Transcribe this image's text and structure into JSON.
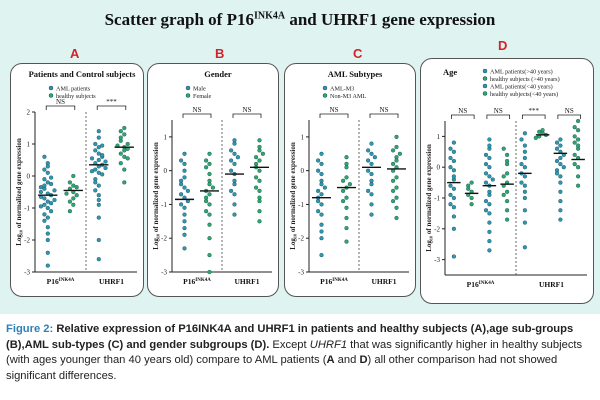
{
  "figure": {
    "title_prefix": "Scatter graph of P16",
    "title_sup": "INK4A",
    "title_suffix": " and UHRF1 gene expression",
    "colors": {
      "blue": "#2e97b0",
      "green": "#2ea86a",
      "bg": "#dff3f1",
      "letter": "#d2232a",
      "caption_label": "#2f7fb8"
    }
  },
  "caption": {
    "label": "Figure 2:",
    "bold_text": " Relative expression of P16INK4A and UHRF1 in patients and healthy subjects (A),age sub-groups (B),AML sub-types (C) and gender subgroups (D).",
    "rest_1": " Except ",
    "rest_italic": "UHRF1",
    "rest_2": " that was significantly higher in healthy subjects (with ages younger than 40 years old) compare to AML patients (",
    "bold_a": "A",
    "rest_3": " and ",
    "bold_d": "D",
    "rest_4": ") all other comparison had not showed significant differences."
  },
  "chart_data": [
    {
      "letter": "A",
      "type": "scatter",
      "title": "Patients and Control subjects",
      "ylabel": "Log₁₀ of normalized gene expression",
      "categories": [
        "P16INK4A",
        "UHRF1"
      ],
      "category_labels": [
        {
          "main": "P16",
          "sup": "INK4A"
        },
        {
          "main": "UHRF1",
          "sup": ""
        }
      ],
      "legend": [
        "AML patients",
        "healthy subjects"
      ],
      "legend_position": "top-left",
      "significance": [
        "NS",
        "***"
      ],
      "ylim": [
        -3,
        2
      ],
      "series": [
        {
          "name": "AML patients",
          "color": "blue",
          "groups": [
            [
              -0.55,
              -0.4,
              -0.8,
              -1.0,
              -1.3,
              -0.2,
              0.1,
              -0.6,
              -0.9,
              -1.6,
              -2.0,
              -0.3,
              0.4,
              -0.5,
              -0.7,
              -1.1,
              -0.1,
              0.3,
              -0.45,
              -0.85,
              -1.4,
              -2.4,
              -2.8,
              -0.25,
              0.6,
              -0.65,
              -1.2,
              -0.35,
              -0.75,
              -1.8,
              0.2,
              -0.05,
              -0.95
            ],
            [
              0.3,
              0.5,
              0.1,
              0.7,
              0.9,
              0.2,
              -0.1,
              0.4,
              0.6,
              1.0,
              -0.3,
              -0.6,
              -0.9,
              1.2,
              0.8,
              0.35,
              0.05,
              -0.2,
              -1.3,
              -2.0,
              -2.6,
              0.55,
              0.15,
              0.45,
              1.4,
              -0.45,
              0.25,
              0.65,
              -0.75,
              0.95
            ]
          ],
          "medians": [
            -0.6,
            0.35
          ]
        },
        {
          "name": "healthy subjects",
          "color": "green",
          "groups": [
            [
              -0.5,
              -0.3,
              -0.7,
              -0.2,
              -0.9,
              -0.4,
              -0.6,
              0.0,
              -0.8,
              -1.1,
              -0.35,
              -0.55
            ],
            [
              0.9,
              1.1,
              0.6,
              1.3,
              0.8,
              0.4,
              1.5,
              1.0,
              0.7,
              0.2,
              0.95,
              1.2,
              0.55,
              1.4,
              -0.2,
              0.85
            ]
          ],
          "medians": [
            -0.45,
            0.9
          ]
        }
      ]
    },
    {
      "letter": "B",
      "type": "scatter",
      "title": "Gender",
      "ylabel": "Log₁₀ of normalized gene expression",
      "categories": [
        "P16INK4A",
        "UHRF1"
      ],
      "category_labels": [
        {
          "main": "P16",
          "sup": "INK4A"
        },
        {
          "main": "UHRF1",
          "sup": ""
        }
      ],
      "legend": [
        "Male",
        "Female"
      ],
      "legend_position": "top-left",
      "significance": [
        "NS",
        "NS"
      ],
      "ylim": [
        -3,
        1.5
      ],
      "y_ticks": [
        -3,
        -2,
        -1,
        0,
        1
      ],
      "series": [
        {
          "name": "Male",
          "color": "blue",
          "groups": [
            [
              0.5,
              0.2,
              -0.2,
              -0.5,
              -0.8,
              -1.1,
              -1.5,
              -1.9,
              -2.3,
              0.0,
              -0.4,
              -0.7,
              -1.0,
              -0.9,
              -0.6,
              -1.3,
              -0.3,
              0.3,
              -1.7
            ],
            [
              0.8,
              0.5,
              0.2,
              -0.1,
              -0.4,
              -0.7,
              -1.0,
              0.6,
              0.3,
              0.0,
              -0.3,
              -0.6,
              -1.3,
              0.9,
              0.4
            ]
          ],
          "medians": [
            -0.85,
            -0.1
          ]
        },
        {
          "name": "Female",
          "color": "green",
          "groups": [
            [
              0.5,
              0.2,
              -0.1,
              -0.4,
              -0.7,
              -1.0,
              -1.3,
              -1.6,
              -2.0,
              -2.5,
              -3.0,
              0.1,
              -0.3,
              -0.6,
              -0.9,
              -1.2,
              -0.5,
              -0.8,
              0.3
            ],
            [
              0.9,
              0.6,
              0.3,
              0.0,
              -0.3,
              -0.6,
              -0.9,
              -1.2,
              -1.5,
              0.7,
              0.4,
              0.1,
              -0.2,
              -0.5,
              -0.8,
              0.5,
              0.2
            ]
          ],
          "medians": [
            -0.6,
            0.1
          ]
        }
      ]
    },
    {
      "letter": "C",
      "type": "scatter",
      "title": "AML Subtypes",
      "ylabel": "Log₁₀ of normalized gene expression",
      "categories": [
        "P16INK4A",
        "UHRF1"
      ],
      "category_labels": [
        {
          "main": "P16",
          "sup": "INK4A"
        },
        {
          "main": "UHRF1",
          "sup": ""
        }
      ],
      "legend": [
        "AML-M3",
        "Non-M3 AML"
      ],
      "legend_position": "top-left",
      "significance": [
        "NS",
        "NS"
      ],
      "ylim": [
        -3,
        1.5
      ],
      "y_ticks": [
        -3,
        -2,
        -1,
        0,
        1
      ],
      "series": [
        {
          "name": "AML-M3",
          "color": "blue",
          "groups": [
            [
              0.5,
              0.2,
              -0.1,
              -0.4,
              -0.7,
              -1.0,
              -1.3,
              -1.6,
              -2.0,
              -2.5,
              0.0,
              -0.3,
              -0.6,
              -0.9,
              -1.2,
              -0.5,
              -0.8,
              0.3,
              -1.8
            ],
            [
              0.8,
              0.5,
              0.2,
              -0.1,
              -0.4,
              -0.7,
              -1.0,
              0.6,
              0.3,
              0.0,
              -0.3,
              -0.6,
              -1.3,
              0.4
            ]
          ],
          "medians": [
            -0.8,
            0.1
          ]
        },
        {
          "name": "Non-M3 AML",
          "color": "green",
          "groups": [
            [
              0.4,
              0.1,
              -0.2,
              -0.5,
              -0.8,
              -1.1,
              -1.4,
              -1.7,
              -2.1,
              -0.3,
              -0.6,
              -0.9,
              0.2,
              -0.4
            ],
            [
              1.0,
              0.7,
              0.4,
              0.1,
              -0.2,
              -0.5,
              -0.8,
              -1.1,
              -1.4,
              0.6,
              0.3,
              0.0,
              -0.3,
              -0.6,
              0.5,
              0.2,
              -0.9
            ]
          ],
          "medians": [
            -0.5,
            0.05
          ]
        }
      ]
    },
    {
      "letter": "D",
      "type": "scatter",
      "title": "Age",
      "ylabel": "Log₁₀ of normalized gene expression",
      "categories": [
        "P16INK4A",
        "UHRF1"
      ],
      "category_labels": [
        {
          "main": "P16",
          "sup": "INK4A"
        },
        {
          "main": "UHRF1",
          "sup": ""
        }
      ],
      "legend": [
        "AML patients(>40 years)",
        "healthy subjects (>40 years)",
        "AML patients(<40 years)",
        "healthy subjects(<40 years)"
      ],
      "legend_position": "top-right",
      "significance": [
        "NS",
        "NS",
        "***",
        "NS"
      ],
      "ylim": [
        -3.5,
        1.5
      ],
      "series": [
        {
          "name": "AML patients(>40 years)",
          "color": "blue",
          "groups": [
            [
              0.8,
              0.5,
              0.2,
              -0.1,
              -0.4,
              -0.7,
              -1.0,
              -1.3,
              -1.6,
              -2.0,
              0.3,
              0.0,
              -0.3,
              -0.6,
              -0.9,
              -1.2,
              -2.9,
              0.6
            ],
            [
              1.1,
              0.7,
              0.3,
              0.0,
              -0.3,
              -0.6,
              -1.0,
              -1.4,
              -1.8,
              0.5,
              0.1,
              -0.2,
              -0.5,
              -0.8,
              0.9,
              -2.6
            ]
          ],
          "medians": [
            -0.5,
            -0.2
          ]
        },
        {
          "name": "healthy subjects (>40 years)",
          "color": "green",
          "groups": [
            [
              -0.5,
              -0.8,
              -1.0,
              -0.6,
              -0.9,
              -1.2,
              -0.7
            ],
            [
              1.1,
              1.0,
              1.2,
              1.05,
              1.15,
              0.95
            ]
          ],
          "medians": [
            -0.85,
            1.05
          ]
        },
        {
          "name": "AML patients(<40 years)",
          "color": "blue",
          "groups": [
            [
              0.9,
              0.6,
              0.3,
              0.0,
              -0.3,
              -0.6,
              -0.9,
              -1.2,
              -1.5,
              -1.8,
              -2.1,
              0.4,
              0.1,
              -0.2,
              -0.5,
              -0.8,
              -1.1,
              -1.4,
              -2.4,
              -2.7,
              0.7,
              -0.4
            ],
            [
              0.9,
              0.7,
              0.5,
              0.3,
              0.1,
              -0.1,
              -0.3,
              -0.5,
              -0.8,
              -1.1,
              -1.4,
              -1.7,
              0.6,
              0.4,
              0.2,
              0.0,
              -0.2,
              0.8
            ]
          ],
          "medians": [
            -0.6,
            0.45
          ]
        },
        {
          "name": "healthy subjects(<40 years)",
          "color": "green",
          "groups": [
            [
              0.4,
              0.1,
              -0.2,
              -0.5,
              -0.8,
              -1.1,
              -1.4,
              -0.3,
              -0.6,
              0.2,
              -0.9,
              -1.7,
              0.6
            ],
            [
              1.5,
              1.2,
              0.9,
              0.6,
              0.3,
              0.0,
              -0.3,
              -0.6,
              1.0,
              0.7,
              0.4,
              0.1,
              1.3,
              0.8
            ]
          ],
          "medians": [
            -0.55,
            0.25
          ]
        }
      ]
    }
  ]
}
